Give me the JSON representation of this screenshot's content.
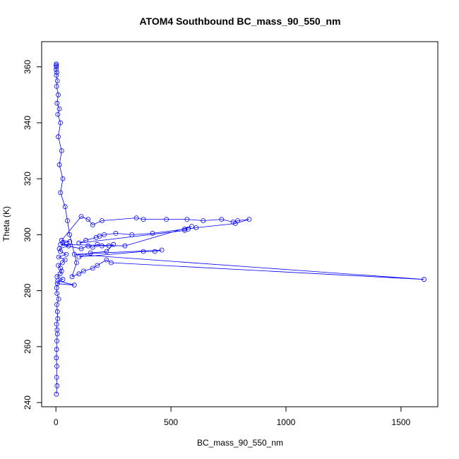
{
  "chart_data": {
    "type": "line",
    "title": "ATOM4 Southbound BC_mass_90_550_nm",
    "xlabel": "BC_mass_90_550_nm",
    "ylabel": "Theta (K)",
    "xlim": [
      -62,
      1660
    ],
    "ylim": [
      238.5,
      369
    ],
    "xticks": [
      0,
      500,
      1000,
      1500
    ],
    "yticks": [
      240,
      260,
      280,
      300,
      320,
      340,
      360
    ],
    "grid": false,
    "legend": "none",
    "marker": "open-circle",
    "color": "#0000ff",
    "series": [
      {
        "x": [
          2,
          5,
          3,
          4,
          2,
          3,
          4,
          6,
          5,
          3,
          8,
          6,
          4,
          12,
          5,
          3,
          6,
          80,
          8,
          30,
          5,
          18,
          25,
          20,
          10,
          28,
          40,
          12,
          45,
          20,
          15,
          55,
          30,
          60,
          25,
          110,
          140,
          160,
          200,
          350,
          380,
          480,
          570,
          640,
          720,
          770,
          790,
          840,
          780,
          610,
          575,
          560,
          100,
          130,
          175,
          190,
          210,
          260,
          330,
          420,
          560,
          590,
          300,
          20,
          110,
          140,
          160,
          180,
          200,
          230,
          250,
          220,
          150,
          100,
          380,
          430,
          460,
          80,
          1600,
          240,
          220,
          180,
          160,
          120,
          100,
          70,
          90,
          60,
          50,
          40,
          20,
          30,
          15,
          25,
          10,
          20,
          8,
          15,
          5,
          10,
          3,
          6,
          2,
          4,
          1,
          2,
          1,
          2
        ],
        "y": [
          243,
          246,
          249,
          253,
          256,
          259,
          262,
          264.5,
          266,
          268,
          270,
          272.5,
          275,
          277,
          279,
          281,
          282.5,
          282,
          283.5,
          284,
          285,
          286,
          287,
          288,
          289,
          290,
          291,
          292,
          293,
          294,
          295,
          296,
          297,
          297.5,
          298,
          306.5,
          305.5,
          303.5,
          305,
          306,
          305.5,
          305.5,
          305.5,
          305,
          305.5,
          304.5,
          305,
          305.5,
          304,
          302.5,
          302,
          301.5,
          297,
          298,
          299,
          299.5,
          300,
          300.5,
          300,
          300.5,
          302,
          303,
          296,
          296.5,
          295,
          296,
          295.5,
          296.5,
          296,
          296,
          296.5,
          294,
          293.5,
          292,
          294,
          294,
          294.5,
          293,
          284,
          290,
          291,
          289,
          288,
          287,
          286,
          285,
          290,
          300,
          305,
          310,
          315,
          320,
          325,
          330,
          335,
          340,
          343,
          345,
          347,
          350,
          353,
          355,
          357,
          358,
          359,
          360,
          360.5,
          361
        ]
      }
    ]
  }
}
